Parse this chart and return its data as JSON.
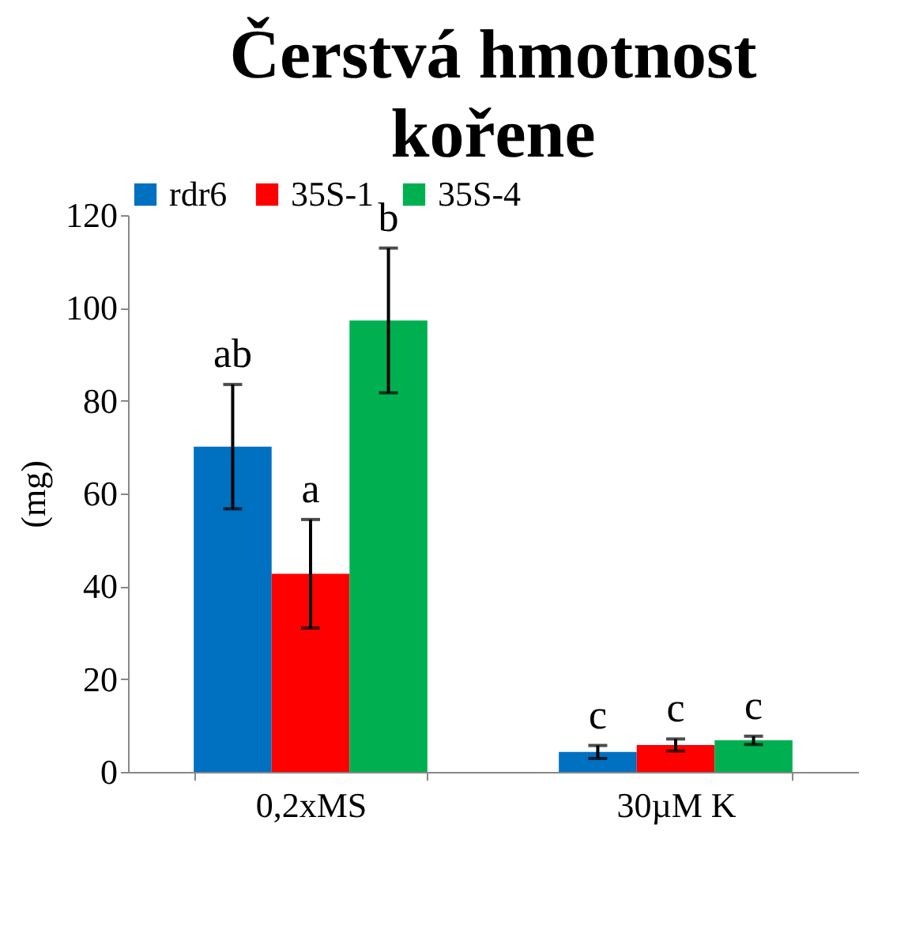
{
  "chart_data": {
    "type": "bar",
    "title": "Čerstvá hmotnost kořene",
    "ylabel": "(mg)",
    "categories": [
      "0,2xMS",
      "30µM K"
    ],
    "series": [
      {
        "name": "rdr6",
        "color": "#0070c0",
        "values": [
          70.1,
          4.3
        ],
        "errors": [
          13.4,
          1.4
        ],
        "value_labels": [
          "ab",
          "c"
        ]
      },
      {
        "name": "35S-1",
        "color": "#ff0000",
        "values": [
          42.7,
          5.8
        ],
        "errors": [
          11.7,
          1.3
        ],
        "value_labels": [
          "a",
          "c"
        ]
      },
      {
        "name": "35S-4",
        "color": "#00b050",
        "values": [
          97.3,
          6.8
        ],
        "errors": [
          15.6,
          0.9
        ],
        "value_labels": [
          "b",
          "c"
        ]
      }
    ],
    "ylim": [
      0,
      120
    ],
    "yticks": [
      0,
      20,
      40,
      60,
      80,
      100,
      120
    ],
    "grid": false,
    "legend": "top"
  }
}
